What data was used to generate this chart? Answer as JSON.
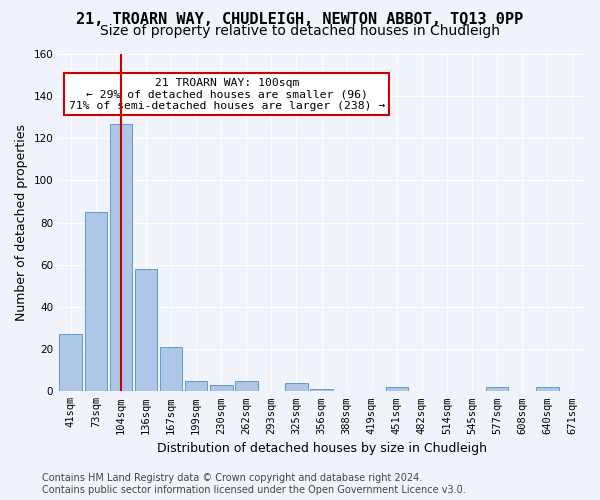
{
  "title1": "21, TROARN WAY, CHUDLEIGH, NEWTON ABBOT, TQ13 0PP",
  "title2": "Size of property relative to detached houses in Chudleigh",
  "xlabel": "Distribution of detached houses by size in Chudleigh",
  "ylabel": "Number of detached properties",
  "categories": [
    "41sqm",
    "73sqm",
    "104sqm",
    "136sqm",
    "167sqm",
    "199sqm",
    "230sqm",
    "262sqm",
    "293sqm",
    "325sqm",
    "356sqm",
    "388sqm",
    "419sqm",
    "451sqm",
    "482sqm",
    "514sqm",
    "545sqm",
    "577sqm",
    "608sqm",
    "640sqm",
    "671sqm"
  ],
  "values": [
    27,
    85,
    127,
    58,
    21,
    5,
    3,
    5,
    0,
    4,
    1,
    0,
    0,
    2,
    0,
    0,
    0,
    2,
    0,
    2,
    0
  ],
  "bar_color": "#aec6e8",
  "bar_edge_color": "#5f9dc8",
  "vline_x": 2,
  "vline_color": "#cc0000",
  "ylim": [
    0,
    160
  ],
  "yticks": [
    0,
    20,
    40,
    60,
    80,
    100,
    120,
    140,
    160
  ],
  "annotation_text": "21 TROARN WAY: 100sqm\n← 29% of detached houses are smaller (96)\n71% of semi-detached houses are larger (238) →",
  "annotation_box_color": "#ffffff",
  "annotation_box_edge": "#cc0000",
  "footer": "Contains HM Land Registry data © Crown copyright and database right 2024.\nContains public sector information licensed under the Open Government Licence v3.0.",
  "bg_color": "#f0f4fa",
  "grid_color": "#ffffff",
  "title_fontsize": 11,
  "subtitle_fontsize": 10,
  "label_fontsize": 9,
  "tick_fontsize": 7.5,
  "footer_fontsize": 7
}
